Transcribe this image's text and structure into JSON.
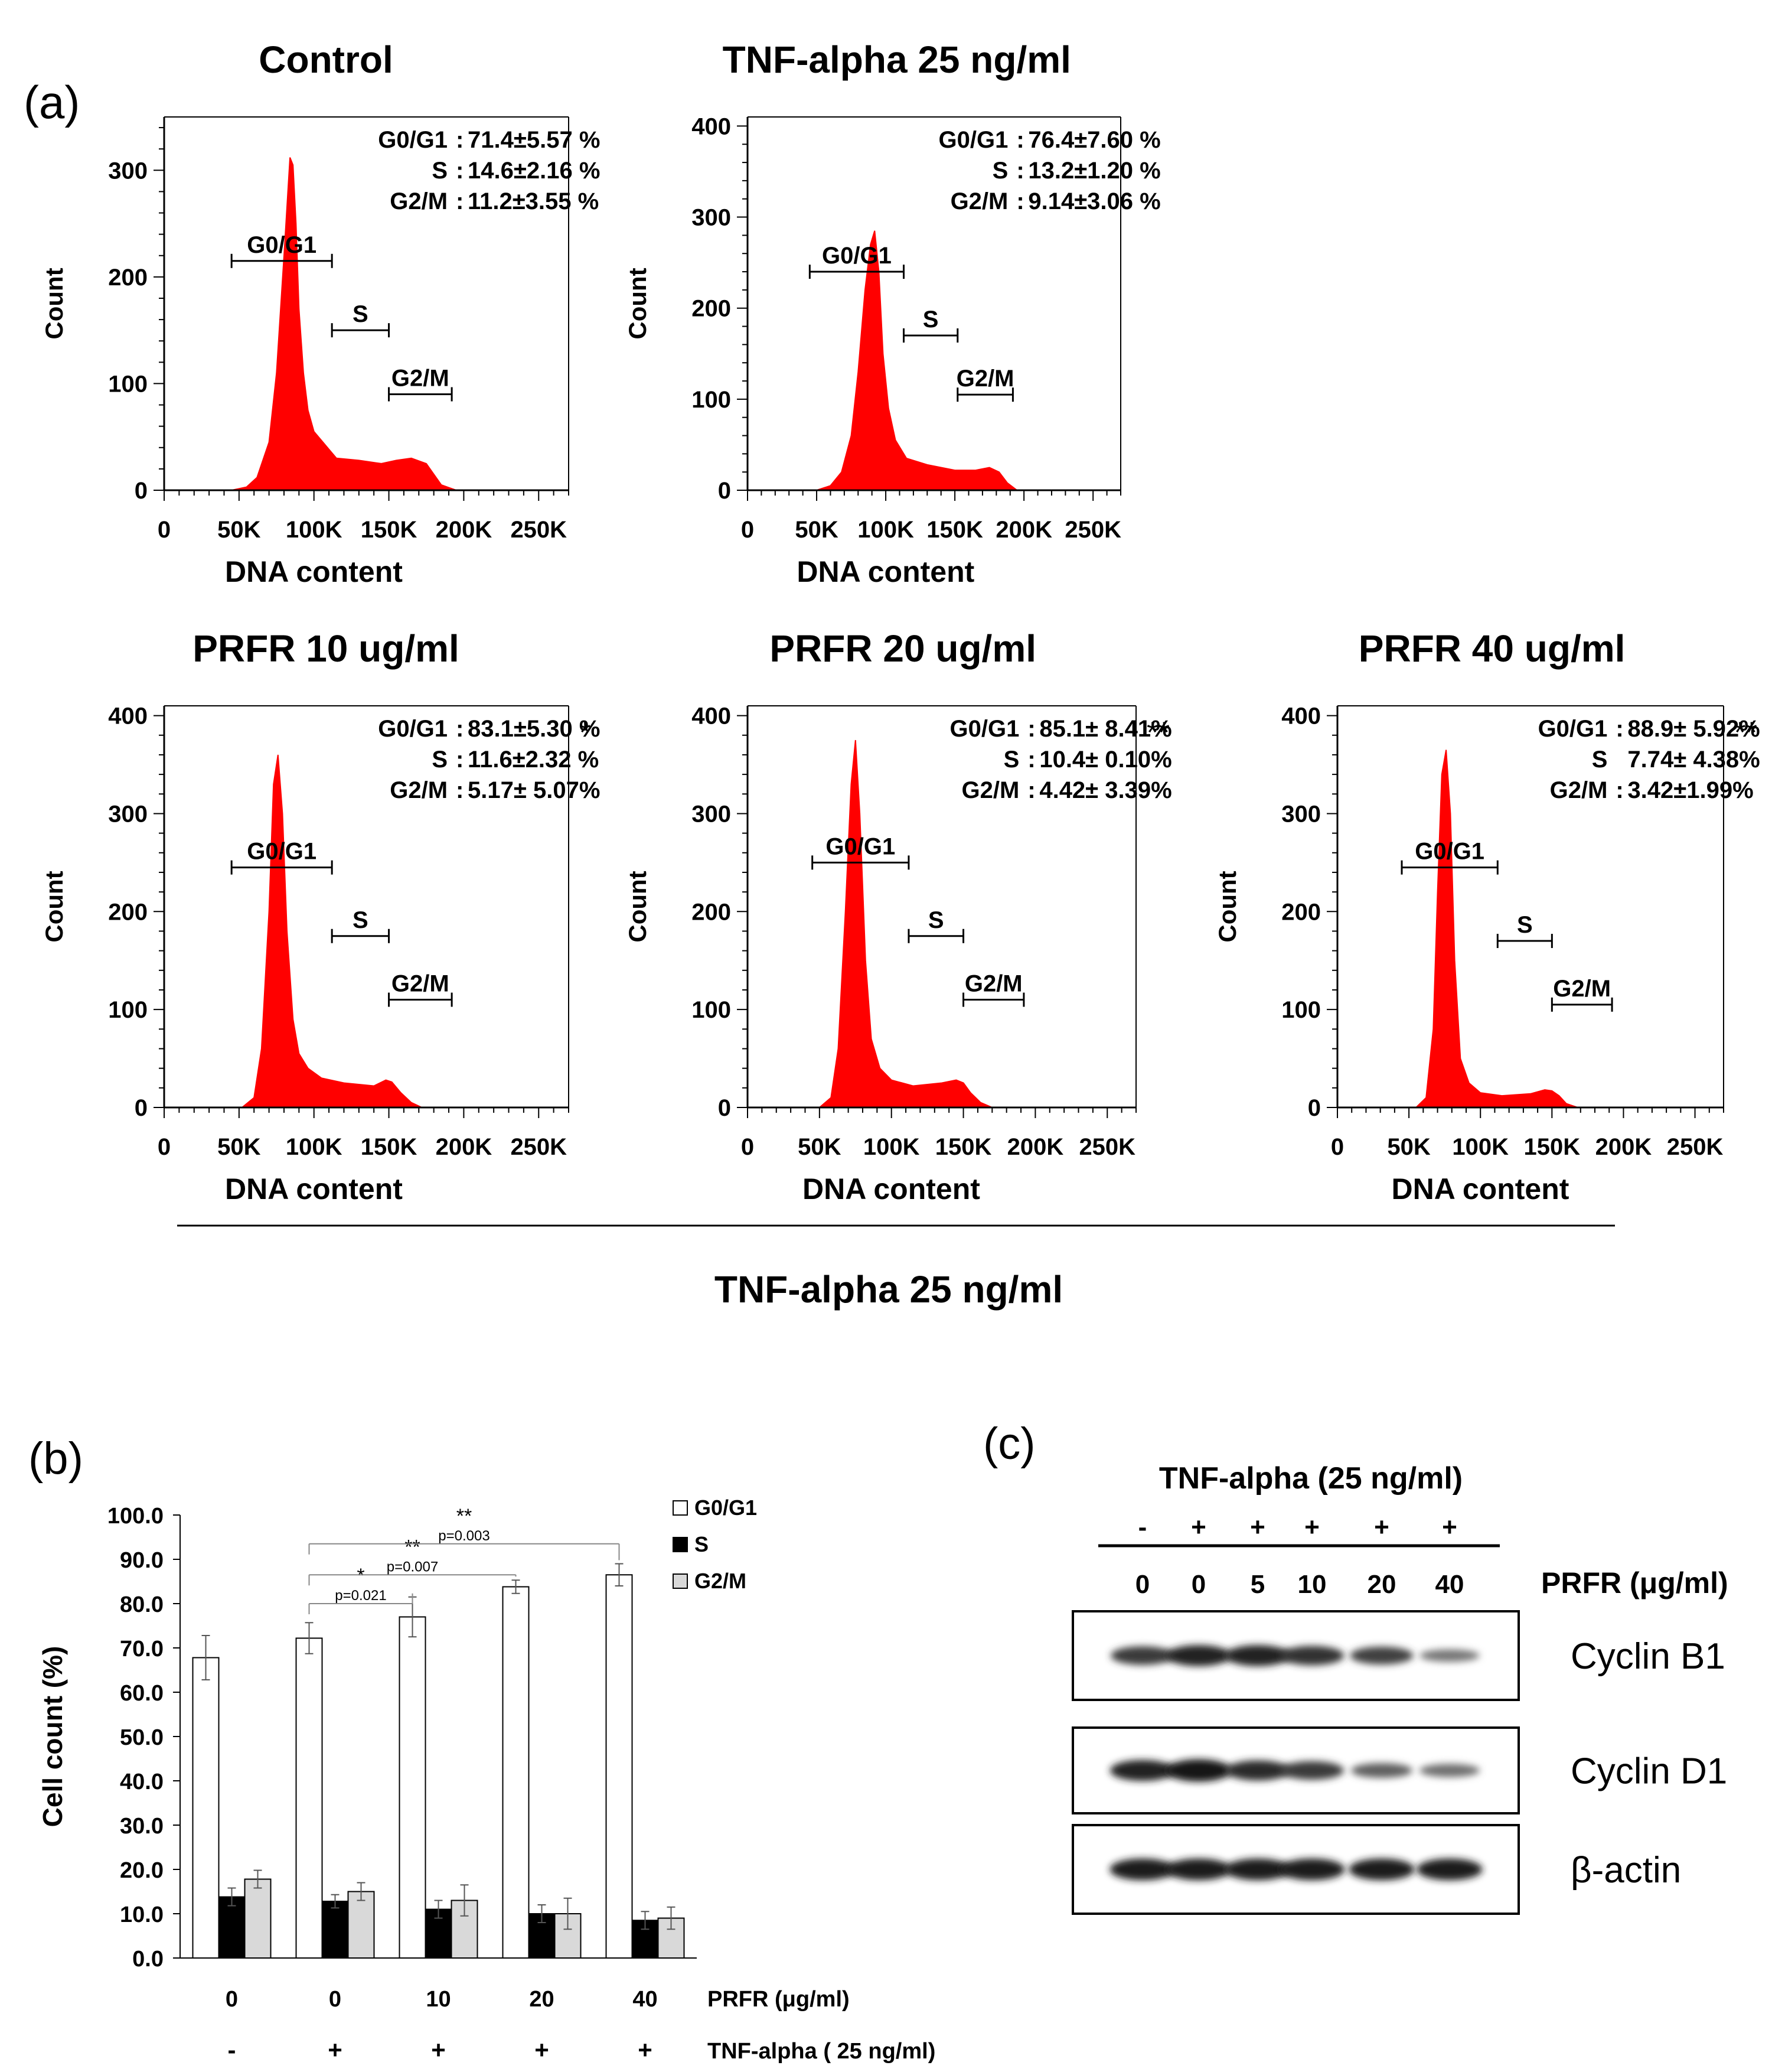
{
  "colors": {
    "histogram": "#ff0000",
    "axis": "#000000",
    "bar_g0g1": "#ffffff",
    "bar_s": "#000000",
    "bar_g2m": "#d9d9d9"
  },
  "panel_a": {
    "label": "(a)",
    "bottom_caption": "TNF-alpha 25 ng/ml"
  },
  "chart_data": [
    {
      "type": "area",
      "title": "Control",
      "xlabel": "DNA content",
      "ylabel": "Count",
      "xlim": [
        0,
        270000
      ],
      "ylim": [
        0,
        350
      ],
      "xticks": [
        "0",
        "50K",
        "100K",
        "150K",
        "200K",
        "250K"
      ],
      "yticks": [
        "0",
        "100",
        "200",
        "300"
      ],
      "gates": [
        {
          "label": "G0/G1",
          "x_range": [
            45000,
            112000
          ],
          "y": 215
        },
        {
          "label": "S",
          "x_range": [
            112000,
            150000
          ],
          "y": 150
        },
        {
          "label": "G2/M",
          "x_range": [
            150000,
            192000
          ],
          "y": 90
        }
      ],
      "stats": [
        {
          "phase": "G0/G1",
          "sep": ":",
          "value": "71.4±5.57 %"
        },
        {
          "phase": "S",
          "sep": ":",
          "value": "14.6±2.16 %"
        },
        {
          "phase": "G2/M",
          "sep": ":",
          "value": "11.2±3.55 %"
        }
      ],
      "significance": "",
      "histogram": {
        "x": [
          45000,
          55000,
          62000,
          70000,
          75000,
          80000,
          84000,
          86000,
          88000,
          90000,
          93000,
          96000,
          100000,
          106000,
          115000,
          130000,
          145000,
          155000,
          165000,
          175000,
          180000,
          185000,
          195000
        ],
        "y": [
          0,
          3,
          12,
          45,
          110,
          220,
          312,
          305,
          250,
          170,
          110,
          75,
          55,
          45,
          30,
          28,
          25,
          28,
          30,
          25,
          15,
          5,
          0
        ]
      }
    },
    {
      "type": "area",
      "title": "TNF-alpha 25 ng/ml",
      "xlabel": "DNA content",
      "ylabel": "Count",
      "xlim": [
        0,
        270000
      ],
      "ylim": [
        0,
        410
      ],
      "xticks": [
        "0",
        "50K",
        "100K",
        "150K",
        "200K",
        "250K"
      ],
      "yticks": [
        "0",
        "100",
        "200",
        "300",
        "400"
      ],
      "gates": [
        {
          "label": "G0/G1",
          "x_range": [
            45000,
            113000
          ],
          "y": 240
        },
        {
          "label": "S",
          "x_range": [
            113000,
            152000
          ],
          "y": 170
        },
        {
          "label": "G2/M",
          "x_range": [
            152000,
            192000
          ],
          "y": 105
        }
      ],
      "stats": [
        {
          "phase": "G0/G1",
          "sep": ":",
          "value": "76.4±7.60 %"
        },
        {
          "phase": "S",
          "sep": ":",
          "value": "13.2±1.20 %"
        },
        {
          "phase": "G2/M",
          "sep": ":",
          "value": "9.14±3.06 %"
        }
      ],
      "significance": "",
      "histogram": {
        "x": [
          50000,
          60000,
          68000,
          75000,
          80000,
          85000,
          89000,
          92000,
          95000,
          98000,
          102000,
          107000,
          115000,
          130000,
          150000,
          165000,
          175000,
          182000,
          188000,
          195000
        ],
        "y": [
          0,
          5,
          20,
          60,
          130,
          220,
          270,
          285,
          240,
          150,
          90,
          55,
          35,
          28,
          22,
          22,
          25,
          20,
          8,
          0
        ]
      }
    },
    {
      "type": "area",
      "title": "PRFR 10 ug/ml",
      "xlabel": "DNA content",
      "ylabel": "Count",
      "xlim": [
        0,
        270000
      ],
      "ylim": [
        0,
        410
      ],
      "xticks": [
        "0",
        "50K",
        "100K",
        "150K",
        "200K",
        "250K"
      ],
      "yticks": [
        "0",
        "100",
        "200",
        "300",
        "400"
      ],
      "gates": [
        {
          "label": "G0/G1",
          "x_range": [
            45000,
            112000
          ],
          "y": 245
        },
        {
          "label": "S",
          "x_range": [
            112000,
            150000
          ],
          "y": 175
        },
        {
          "label": "G2/M",
          "x_range": [
            150000,
            192000
          ],
          "y": 110
        }
      ],
      "stats": [
        {
          "phase": "G0/G1",
          "sep": ":",
          "value": "83.1±5.30 %"
        },
        {
          "phase": "S",
          "sep": ":",
          "value": "11.6±2.32 %"
        },
        {
          "phase": "G2/M",
          "sep": ":",
          "value": "5.17± 5.07%"
        }
      ],
      "significance": "*",
      "histogram": {
        "x": [
          52000,
          60000,
          65000,
          70000,
          73000,
          76000,
          79000,
          82000,
          86000,
          90000,
          96000,
          105000,
          120000,
          140000,
          148000,
          152000,
          158000,
          165000,
          172000
        ],
        "y": [
          0,
          10,
          60,
          200,
          330,
          360,
          300,
          180,
          90,
          55,
          40,
          30,
          25,
          22,
          28,
          26,
          15,
          5,
          0
        ]
      }
    },
    {
      "type": "area",
      "title": "PRFR 20 ug/ml",
      "xlabel": "DNA content",
      "ylabel": "Count",
      "xlim": [
        0,
        270000
      ],
      "ylim": [
        0,
        410
      ],
      "xticks": [
        "0",
        "50K",
        "100K",
        "150K",
        "200K",
        "250K"
      ],
      "yticks": [
        "0",
        "100",
        "200",
        "300",
        "400"
      ],
      "gates": [
        {
          "label": "G0/G1",
          "x_range": [
            45000,
            112000
          ],
          "y": 250
        },
        {
          "label": "S",
          "x_range": [
            112000,
            150000
          ],
          "y": 175
        },
        {
          "label": "G2/M",
          "x_range": [
            150000,
            192000
          ],
          "y": 110
        }
      ],
      "stats": [
        {
          "phase": "G0/G1",
          "sep": ":",
          "value": "85.1± 8.41%"
        },
        {
          "phase": "S",
          "sep": ":",
          "value": "10.4± 0.10%"
        },
        {
          "phase": "G2/M",
          "sep": ":",
          "value": "4.42± 3.39%"
        }
      ],
      "significance": "**",
      "histogram": {
        "x": [
          50000,
          58000,
          63000,
          68000,
          72000,
          75000,
          78000,
          82000,
          86000,
          92000,
          100000,
          115000,
          135000,
          145000,
          150000,
          155000,
          162000,
          170000
        ],
        "y": [
          0,
          10,
          60,
          200,
          330,
          375,
          300,
          150,
          70,
          40,
          28,
          22,
          25,
          28,
          25,
          15,
          5,
          0
        ]
      }
    },
    {
      "type": "area",
      "title": "PRFR 40 ug/ml",
      "xlabel": "DNA content",
      "ylabel": "Count",
      "xlim": [
        0,
        270000
      ],
      "ylim": [
        0,
        410
      ],
      "xticks": [
        "0",
        "50K",
        "100K",
        "150K",
        "200K",
        "250K"
      ],
      "yticks": [
        "0",
        "100",
        "200",
        "300",
        "400"
      ],
      "gates": [
        {
          "label": "G0/G1",
          "x_range": [
            45000,
            112000
          ],
          "y": 245
        },
        {
          "label": "S",
          "x_range": [
            112000,
            150000
          ],
          "y": 170
        },
        {
          "label": "G2/M",
          "x_range": [
            150000,
            192000
          ],
          "y": 105
        }
      ],
      "stats": [
        {
          "phase": "G0/G1",
          "sep": ":",
          "value": "88.9± 5.92%"
        },
        {
          "phase": "S",
          "sep": "",
          "value": "7.74± 4.38%"
        },
        {
          "phase": "G2/M",
          "sep": ":",
          "value": "3.42±1.99%"
        }
      ],
      "significance": "**",
      "histogram": {
        "x": [
          55000,
          62000,
          67000,
          70000,
          73000,
          76000,
          79000,
          82000,
          86000,
          92000,
          100000,
          115000,
          135000,
          145000,
          150000,
          155000,
          160000,
          168000
        ],
        "y": [
          0,
          10,
          80,
          220,
          340,
          365,
          300,
          150,
          50,
          25,
          15,
          12,
          14,
          18,
          17,
          12,
          4,
          0
        ]
      }
    },
    {
      "type": "bar",
      "panel_label": "(b)",
      "ylabel": "Cell count (%)",
      "ylim": [
        0,
        100
      ],
      "yticks": [
        "0.0",
        "10.0",
        "20.0",
        "30.0",
        "40.0",
        "50.0",
        "60.0",
        "70.0",
        "80.0",
        "90.0",
        "100.0"
      ],
      "categories": [
        "0",
        "0",
        "10",
        "20",
        "40"
      ],
      "row2_values": [
        "-",
        "+",
        "+",
        "+",
        "+"
      ],
      "row1_label": "PRFR (μg/ml)",
      "row2_label": "TNF-alpha ( 25 ng/ml)",
      "series": [
        {
          "name": "G0/G1",
          "values": [
            67.8,
            72.2,
            77.0,
            83.8,
            86.5
          ],
          "errors": [
            5.0,
            3.5,
            4.5,
            1.5,
            2.5
          ]
        },
        {
          "name": "S",
          "values": [
            13.8,
            12.8,
            11.0,
            10.0,
            8.5
          ],
          "errors": [
            2.0,
            1.5,
            2.0,
            2.0,
            2.0
          ]
        },
        {
          "name": "G2/M",
          "values": [
            17.8,
            15.0,
            13.0,
            10.0,
            9.0
          ],
          "errors": [
            2.0,
            2.0,
            3.5,
            3.5,
            2.5
          ]
        }
      ],
      "comparisons": [
        {
          "from": 1,
          "to": 2,
          "stars": "*",
          "p": "p=0.021",
          "y": 80.0
        },
        {
          "from": 1,
          "to": 3,
          "stars": "**",
          "p": "p=0.007",
          "y": 86.5
        },
        {
          "from": 1,
          "to": 4,
          "stars": "**",
          "p": "p=0.003",
          "y": 93.5
        }
      ]
    }
  ],
  "panel_c": {
    "label": "(c)",
    "title": "TNF-alpha (25 ng/ml)",
    "tnf_row": [
      "-",
      "+",
      "+",
      "+",
      "+",
      "+"
    ],
    "prfr_row": [
      "0",
      "0",
      "5",
      "10",
      "20",
      "40"
    ],
    "prfr_label": "PRFR (μg/ml)",
    "blots": [
      {
        "name": "Cyclin B1",
        "intensity": [
          0.75,
          0.9,
          0.9,
          0.8,
          0.7,
          0.35
        ]
      },
      {
        "name": "Cyclin D1",
        "intensity": [
          0.9,
          1.0,
          0.85,
          0.75,
          0.5,
          0.4
        ]
      },
      {
        "name": "β-actin",
        "intensity": [
          0.95,
          0.95,
          0.95,
          0.95,
          0.95,
          0.95
        ]
      }
    ]
  }
}
